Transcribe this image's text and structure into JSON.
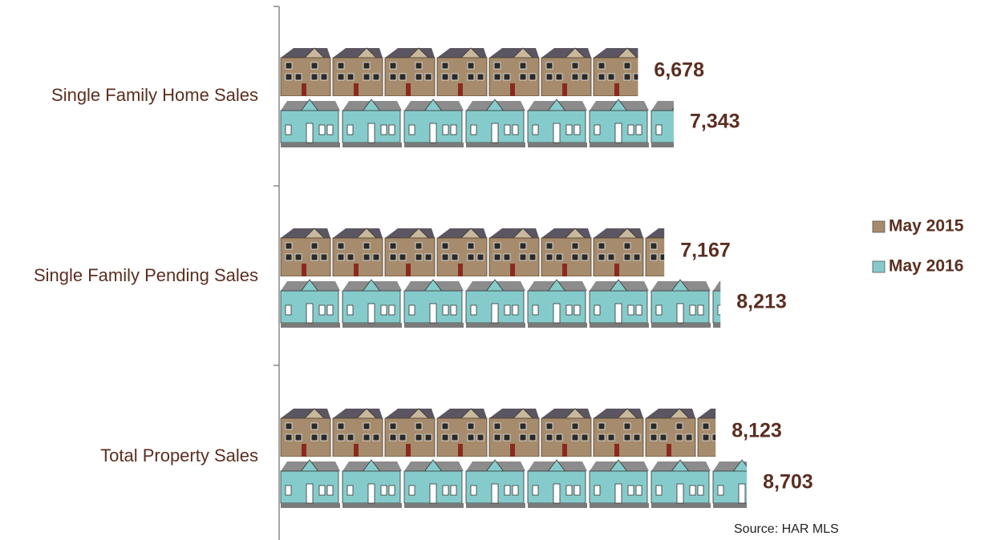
{
  "chart_data": {
    "type": "bar",
    "orientation": "horizontal",
    "categories": [
      "Single Family Home Sales",
      "Single Family Pending Sales",
      "Total Property Sales"
    ],
    "series": [
      {
        "name": "May 2015",
        "color": "#a68c6c",
        "values": [
          6678,
          7167,
          8123
        ],
        "value_labels": [
          "6,678",
          "7,167",
          "8,123"
        ]
      },
      {
        "name": "May 2016",
        "color": "#86cbcb",
        "values": [
          7343,
          8213,
          8703
        ],
        "value_labels": [
          "7,343",
          "8,213",
          "8,703"
        ]
      }
    ],
    "xlim": [
      0,
      10000
    ],
    "source": "Source: HAR MLS"
  }
}
